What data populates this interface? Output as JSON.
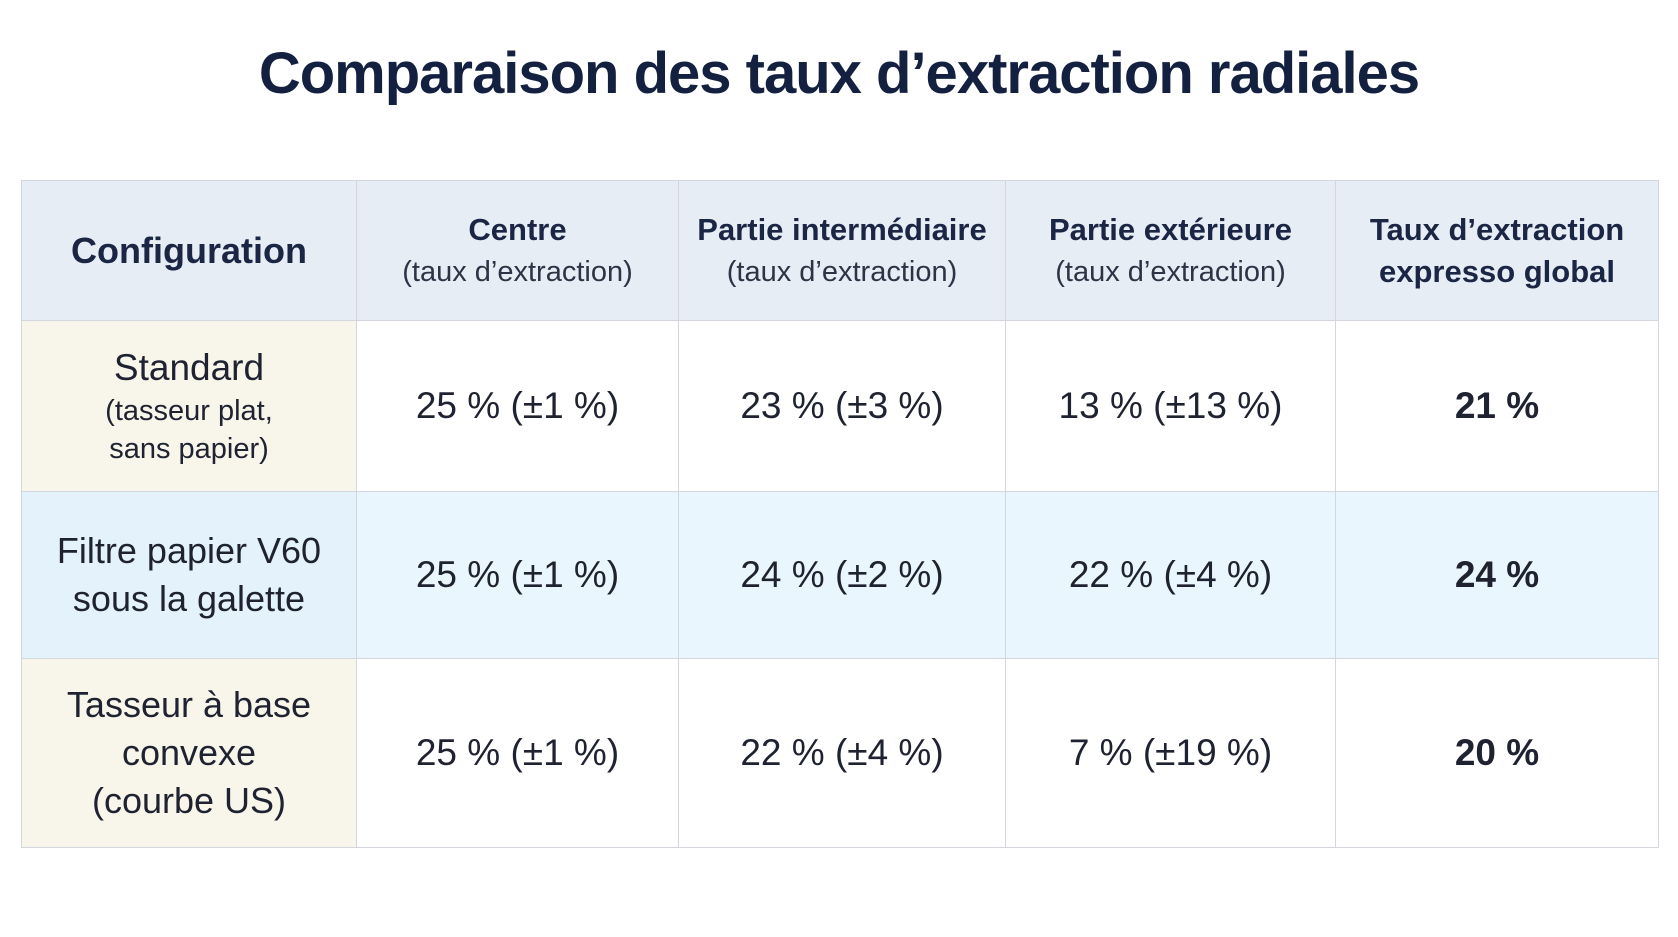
{
  "title": "Comparaison des taux d’extraction radiales",
  "chart_data": {
    "type": "table",
    "title": "Comparaison des taux d’extraction radiales",
    "columns": [
      {
        "main": "Configuration",
        "sub": ""
      },
      {
        "main": "Centre",
        "sub": "(taux d’extraction)"
      },
      {
        "main": "Partie intermédiaire",
        "sub": "(taux d’extraction)"
      },
      {
        "main": "Partie extérieure",
        "sub": "(taux d’extraction)"
      },
      {
        "main": "Taux d’extraction",
        "sub": "expresso global"
      }
    ],
    "rows": [
      {
        "config_main": "Standard",
        "config_sub": [
          "(tasseur plat,",
          "sans papier)"
        ],
        "centre": "25 % (±1 %)",
        "intermediaire": "23 % (±3 %)",
        "exterieure": "13 % (±13 %)",
        "global": "21 %"
      },
      {
        "config_lines": [
          "Filtre papier V60",
          "sous la galette"
        ],
        "centre": "25 % (±1 %)",
        "intermediaire": "24 % (±2 %)",
        "exterieure": "22 % (±4 %)",
        "global": "24 %"
      },
      {
        "config_lines": [
          "Tasseur à base",
          "convexe",
          "(courbe US)"
        ],
        "centre": "25 % (±1 %)",
        "intermediaire": "22 % (±4 %)",
        "exterieure": "7 % (±19 %)",
        "global": "20 %"
      }
    ],
    "values": {
      "centre": [
        25,
        25,
        25
      ],
      "centre_err": [
        1,
        1,
        1
      ],
      "intermediaire": [
        23,
        24,
        22
      ],
      "intermediaire_err": [
        3,
        2,
        4
      ],
      "exterieure": [
        13,
        22,
        7
      ],
      "exterieure_err": [
        13,
        4,
        19
      ],
      "global": [
        21,
        24,
        20
      ]
    },
    "colors": {
      "header_bg": "#e6edf5",
      "config_bg": "#f8f5ea",
      "highlight_row_bg": "#eaf6fd",
      "title": "#14203f"
    }
  }
}
